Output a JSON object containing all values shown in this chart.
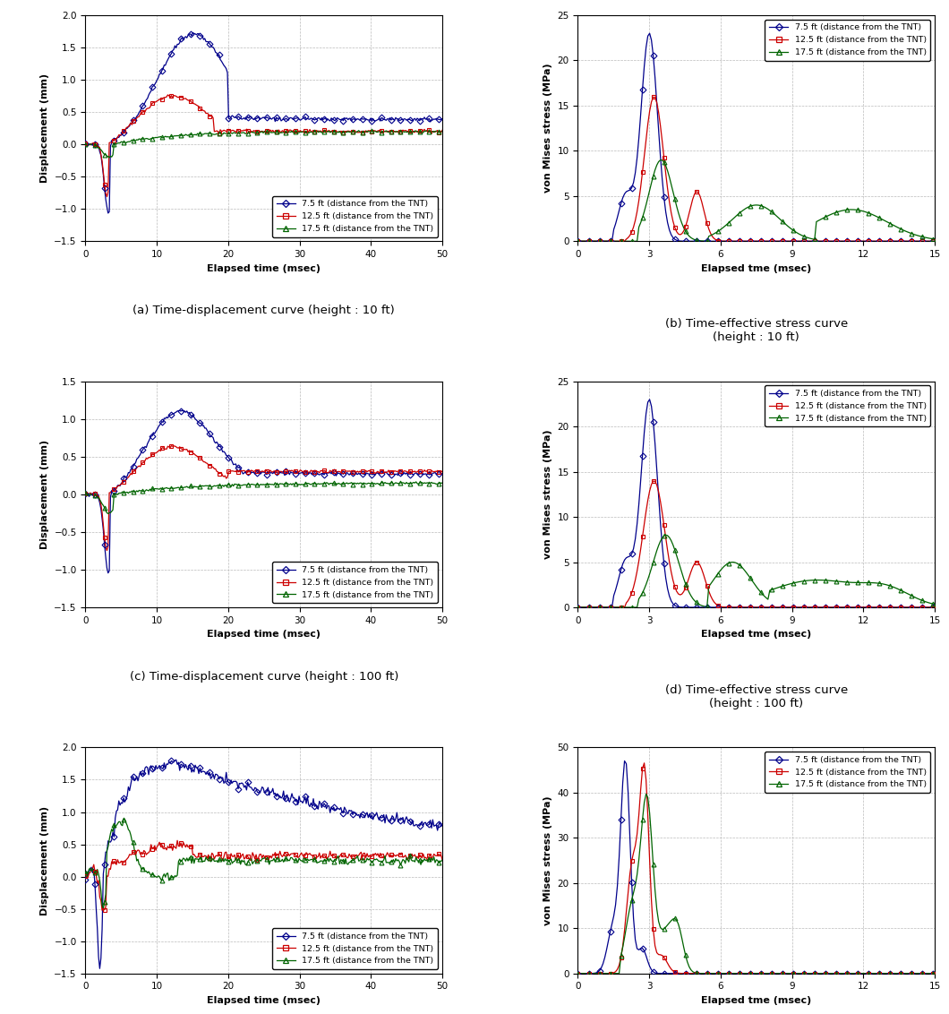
{
  "legend_labels": [
    "7.5 ft (distance from the TNT)",
    "12.5 ft (distance from the TNT)",
    "17.5 ft (distance from the TNT)"
  ],
  "colors": [
    "#00008B",
    "#CC0000",
    "#006400"
  ],
  "subplot_captions": [
    "(a) Time-displacement curve (height : 10 ft)",
    "(b) Time-effective stress curve\n(height : 10 ft)",
    "(c) Time-displacement curve (height : 100 ft)",
    "(d) Time-effective stress curve\n(height : 100 ft)",
    "(e) Time-displacement curve (height : 173 ft)",
    "(f) Time-effective stress curve\n(height : 173 ft)"
  ],
  "disp_xlabel": "Elapsed time (msec)",
  "stress_xlabel": "Elapsed tme (msec)",
  "disp_ylabel": "Displacement (mm)",
  "stress_ylabel": "von Mises stress (MPa)",
  "disp_xlim": [
    0,
    50
  ],
  "stress_xlim": [
    0,
    15
  ],
  "disp_xticks": [
    0,
    10,
    20,
    30,
    40,
    50
  ],
  "stress_xticks": [
    0,
    3,
    6,
    9,
    12,
    15
  ],
  "plot_a_ylim": [
    -1.5,
    2.0
  ],
  "plot_a_yticks": [
    -1.5,
    -1.0,
    -0.5,
    0.0,
    0.5,
    1.0,
    1.5,
    2.0
  ],
  "plot_c_ylim": [
    -1.5,
    1.5
  ],
  "plot_c_yticks": [
    -1.5,
    -1.0,
    -0.5,
    0.0,
    0.5,
    1.0,
    1.5
  ],
  "plot_e_ylim": [
    -1.5,
    2.0
  ],
  "plot_e_yticks": [
    -1.5,
    -1.0,
    -0.5,
    0.0,
    0.5,
    1.0,
    1.5,
    2.0
  ],
  "plot_b_ylim": [
    0,
    25
  ],
  "plot_b_yticks": [
    0,
    5,
    10,
    15,
    20,
    25
  ],
  "plot_d_ylim": [
    0,
    25
  ],
  "plot_d_yticks": [
    0,
    5,
    10,
    15,
    20,
    25
  ],
  "plot_f_ylim": [
    0,
    50
  ],
  "plot_f_yticks": [
    0,
    10,
    20,
    30,
    40,
    50
  ]
}
